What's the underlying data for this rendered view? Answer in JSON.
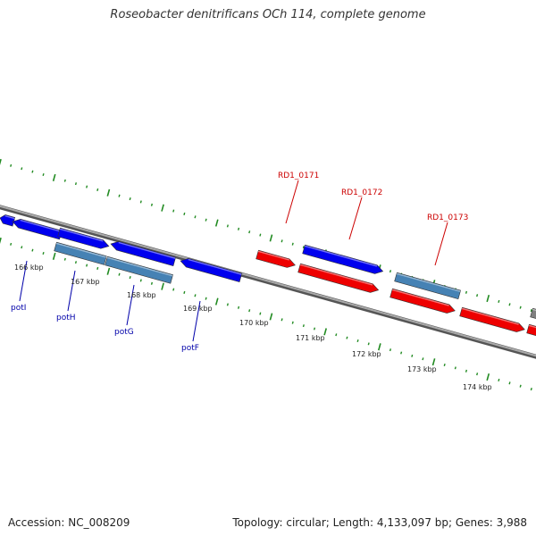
{
  "title": "Roseobacter denitrificans OCh 114, complete genome",
  "footer": {
    "accession": "Accession: NC_008209",
    "summary": "Topology: circular; Length: 4,133,097 bp; Genes: 3,988"
  },
  "colors": {
    "backbone": "#808080",
    "forward_gene": "#0000ee",
    "reverse_gene": "#ee0000",
    "highlight_gene": "#4682b4",
    "tick": "#228b22",
    "gene_label_reverse": "#cc0000",
    "gene_label_forward": "#0000aa"
  },
  "scale": {
    "unit": "kbp",
    "tick_labels": [
      "166 kbp",
      "167 kbp",
      "168 kbp",
      "169 kbp",
      "170 kbp",
      "171 kbp",
      "172 kbp",
      "173 kbp",
      "174 kbp"
    ]
  },
  "genes": {
    "upper_labels": [
      "RD1_0171",
      "RD1_0172",
      "RD1_0173"
    ],
    "lower_labels": [
      "potI",
      "potH",
      "potG",
      "potF"
    ]
  }
}
